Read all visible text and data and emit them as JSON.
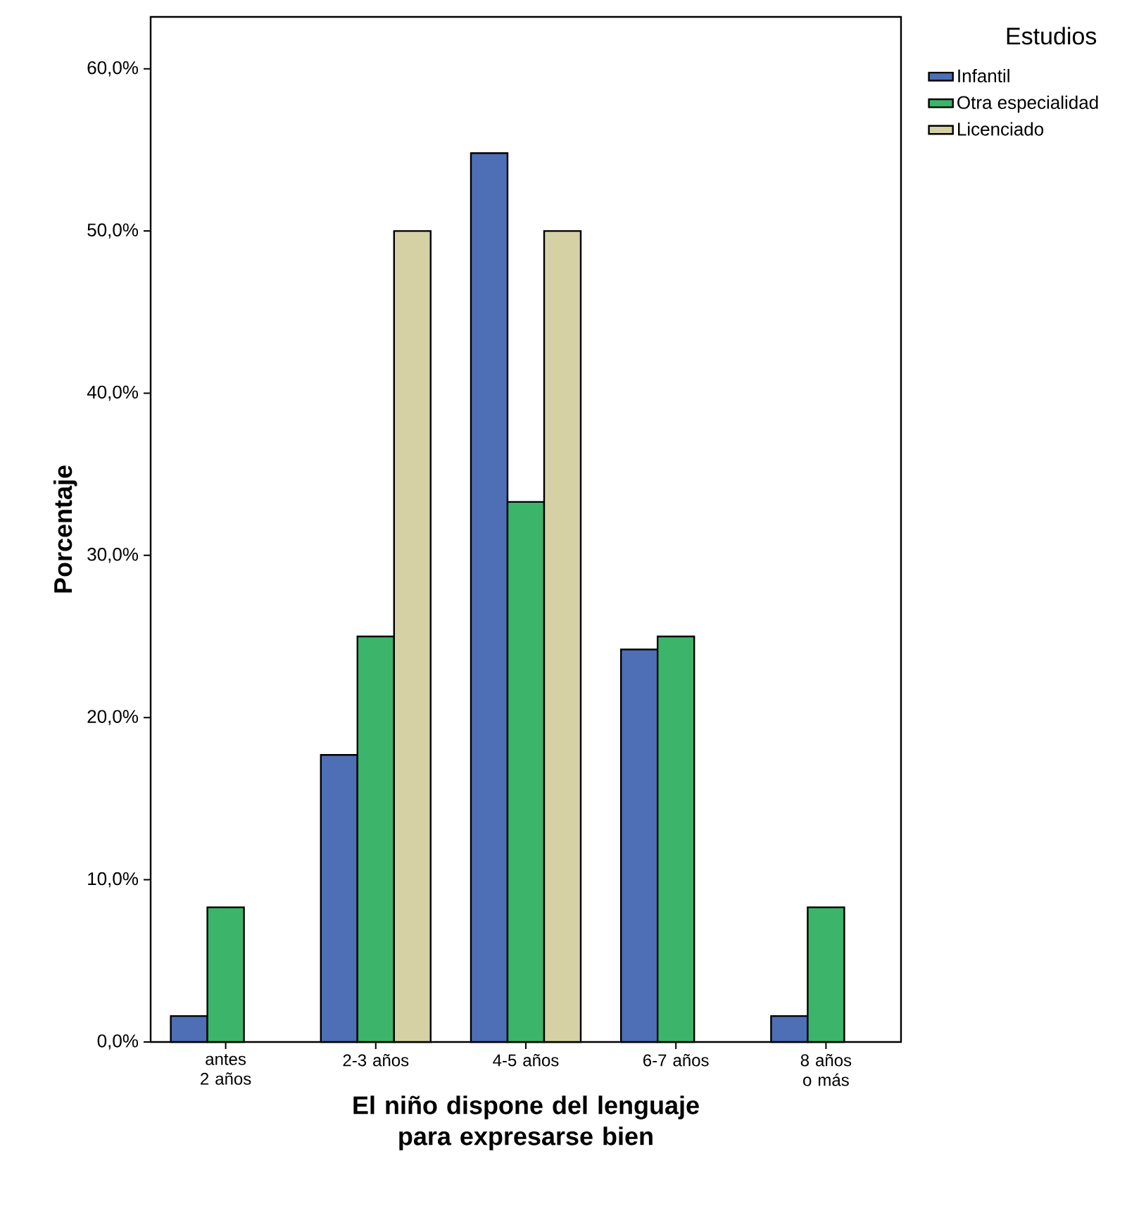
{
  "chart_data": {
    "type": "bar",
    "xlabel": "El niño dispone del lenguaje para expresarse bien",
    "ylabel": "Porcentaje",
    "legend_title": "Estudios",
    "categories": [
      "antes 2 años",
      "2-3 años",
      "4-5 años",
      "6-7 años",
      "8 años o más"
    ],
    "series": [
      {
        "name": "Infantil",
        "color": "#4e6fb5",
        "values": [
          1.6,
          17.7,
          54.8,
          24.2,
          1.6
        ]
      },
      {
        "name": "Otra especialidad",
        "color": "#3cb56a",
        "values": [
          8.3,
          25.0,
          33.3,
          25.0,
          8.3
        ]
      },
      {
        "name": "Licenciado",
        "color": "#d5d1a4",
        "values": [
          null,
          50.0,
          50.0,
          null,
          null
        ]
      }
    ],
    "ylim": [
      0,
      63.2
    ],
    "yticks": [
      {
        "value": 0,
        "label": "0,0%"
      },
      {
        "value": 10,
        "label": "10,0%"
      },
      {
        "value": 20,
        "label": "20,0%"
      },
      {
        "value": 30,
        "label": "30,0%"
      },
      {
        "value": 40,
        "label": "40,0%"
      },
      {
        "value": 50,
        "label": "50,0%"
      },
      {
        "value": 60,
        "label": "60,0%"
      }
    ],
    "legend": "top right"
  }
}
